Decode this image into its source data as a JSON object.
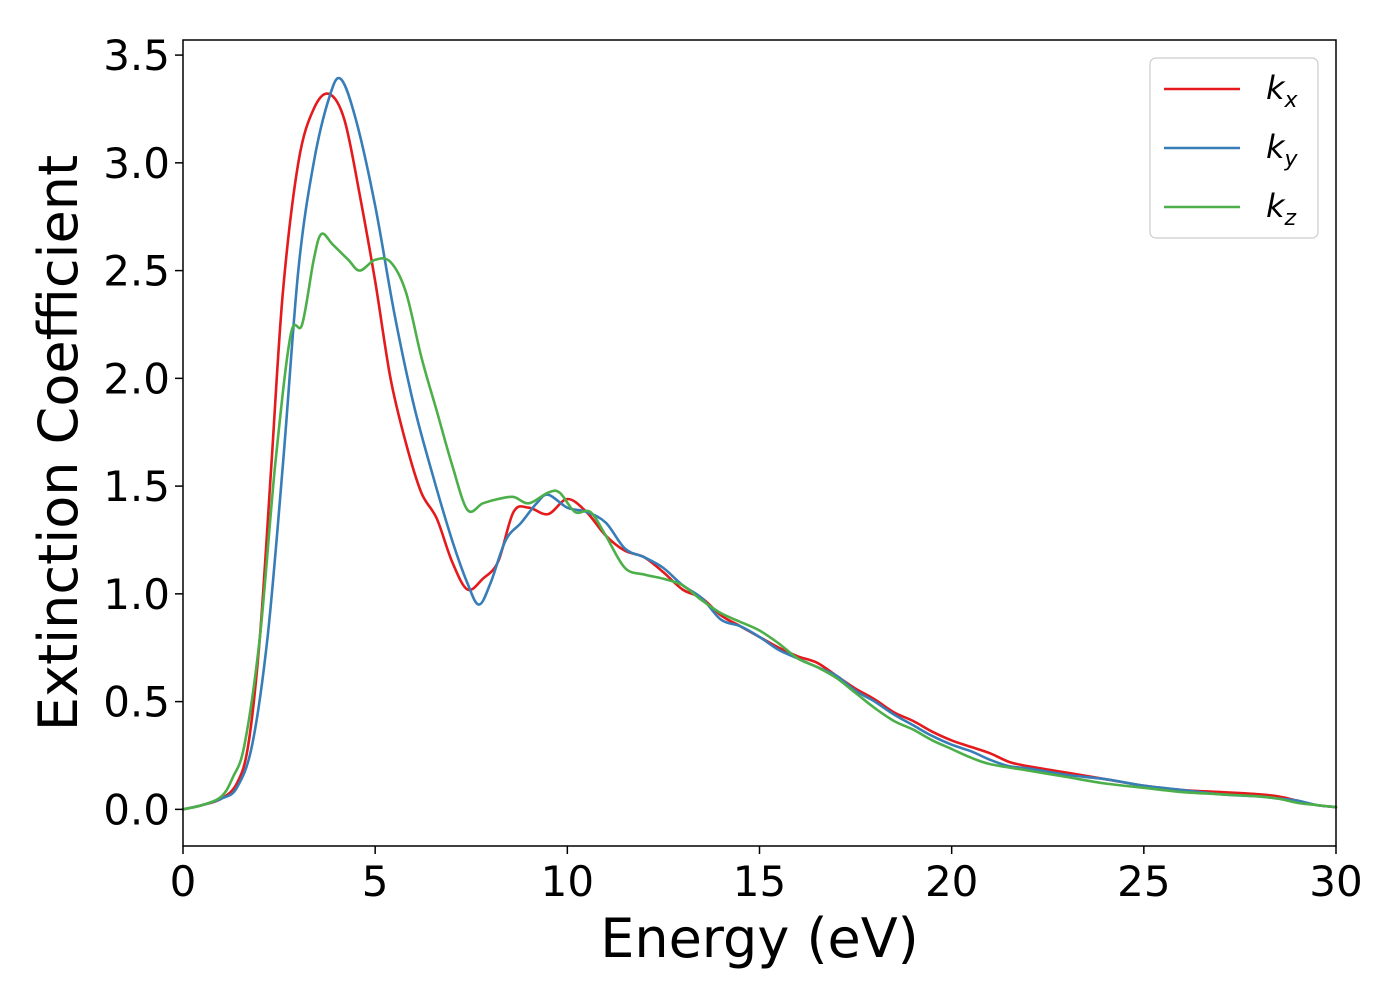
{
  "chart_data": {
    "type": "line",
    "title": "",
    "xlabel": "Energy (eV)",
    "ylabel": "Extinction Coefficient",
    "xlim": [
      0,
      30
    ],
    "ylim": [
      -0.17,
      3.57
    ],
    "xticks": [
      0,
      5,
      10,
      15,
      20,
      25,
      30
    ],
    "xtick_labels": [
      "0",
      "5",
      "10",
      "15",
      "20",
      "25",
      "30"
    ],
    "yticks": [
      0.0,
      0.5,
      1.0,
      1.5,
      2.0,
      2.5,
      3.0,
      3.5
    ],
    "ytick_labels": [
      "0.0",
      "0.5",
      "1.0",
      "1.5",
      "2.0",
      "2.5",
      "3.0",
      "3.5"
    ],
    "grid": false,
    "legend_position": "top-right",
    "series": [
      {
        "name": "k",
        "subscript": "x",
        "color": "#e41a1c",
        "points": [
          [
            0,
            0
          ],
          [
            0.5,
            0.02
          ],
          [
            1.0,
            0.05
          ],
          [
            1.4,
            0.12
          ],
          [
            1.7,
            0.3
          ],
          [
            2.0,
            0.8
          ],
          [
            2.3,
            1.6
          ],
          [
            2.6,
            2.4
          ],
          [
            3.0,
            3.0
          ],
          [
            3.4,
            3.25
          ],
          [
            3.8,
            3.32
          ],
          [
            4.2,
            3.2
          ],
          [
            4.6,
            2.85
          ],
          [
            5.0,
            2.45
          ],
          [
            5.4,
            2.0
          ],
          [
            5.8,
            1.7
          ],
          [
            6.2,
            1.47
          ],
          [
            6.6,
            1.35
          ],
          [
            7.0,
            1.15
          ],
          [
            7.4,
            1.02
          ],
          [
            7.8,
            1.07
          ],
          [
            8.2,
            1.15
          ],
          [
            8.6,
            1.38
          ],
          [
            9.0,
            1.4
          ],
          [
            9.5,
            1.37
          ],
          [
            10.0,
            1.44
          ],
          [
            10.5,
            1.38
          ],
          [
            11.0,
            1.27
          ],
          [
            11.5,
            1.2
          ],
          [
            12.0,
            1.17
          ],
          [
            12.5,
            1.1
          ],
          [
            13.0,
            1.02
          ],
          [
            13.5,
            0.98
          ],
          [
            14.0,
            0.9
          ],
          [
            14.5,
            0.85
          ],
          [
            15.0,
            0.8
          ],
          [
            15.5,
            0.75
          ],
          [
            16.0,
            0.71
          ],
          [
            16.5,
            0.68
          ],
          [
            17.0,
            0.62
          ],
          [
            17.5,
            0.56
          ],
          [
            18.0,
            0.51
          ],
          [
            18.5,
            0.45
          ],
          [
            19.0,
            0.41
          ],
          [
            19.5,
            0.36
          ],
          [
            20.0,
            0.32
          ],
          [
            20.5,
            0.29
          ],
          [
            21.0,
            0.26
          ],
          [
            21.5,
            0.22
          ],
          [
            22.0,
            0.2
          ],
          [
            23.0,
            0.17
          ],
          [
            24.0,
            0.14
          ],
          [
            25.0,
            0.11
          ],
          [
            26.0,
            0.09
          ],
          [
            27.0,
            0.08
          ],
          [
            28.0,
            0.07
          ],
          [
            28.5,
            0.06
          ],
          [
            29.0,
            0.04
          ],
          [
            29.5,
            0.02
          ],
          [
            30.0,
            0.01
          ]
        ]
      },
      {
        "name": "k",
        "subscript": "y",
        "color": "#377eb8",
        "points": [
          [
            0,
            0
          ],
          [
            0.5,
            0.02
          ],
          [
            1.0,
            0.05
          ],
          [
            1.4,
            0.1
          ],
          [
            1.8,
            0.3
          ],
          [
            2.2,
            0.8
          ],
          [
            2.6,
            1.6
          ],
          [
            3.0,
            2.5
          ],
          [
            3.4,
            3.0
          ],
          [
            3.8,
            3.3
          ],
          [
            4.1,
            3.39
          ],
          [
            4.5,
            3.2
          ],
          [
            5.0,
            2.8
          ],
          [
            5.5,
            2.3
          ],
          [
            6.0,
            1.88
          ],
          [
            6.5,
            1.55
          ],
          [
            7.0,
            1.25
          ],
          [
            7.4,
            1.05
          ],
          [
            7.7,
            0.95
          ],
          [
            8.0,
            1.05
          ],
          [
            8.4,
            1.25
          ],
          [
            8.8,
            1.33
          ],
          [
            9.2,
            1.42
          ],
          [
            9.5,
            1.46
          ],
          [
            10.0,
            1.4
          ],
          [
            10.5,
            1.38
          ],
          [
            11.0,
            1.33
          ],
          [
            11.5,
            1.21
          ],
          [
            12.0,
            1.17
          ],
          [
            12.5,
            1.12
          ],
          [
            13.0,
            1.04
          ],
          [
            13.5,
            0.98
          ],
          [
            14.0,
            0.88
          ],
          [
            14.5,
            0.85
          ],
          [
            15.0,
            0.8
          ],
          [
            15.5,
            0.74
          ],
          [
            16.0,
            0.7
          ],
          [
            16.5,
            0.66
          ],
          [
            17.0,
            0.62
          ],
          [
            17.5,
            0.55
          ],
          [
            18.0,
            0.5
          ],
          [
            18.5,
            0.44
          ],
          [
            19.0,
            0.39
          ],
          [
            19.5,
            0.34
          ],
          [
            20.0,
            0.3
          ],
          [
            20.5,
            0.27
          ],
          [
            21.0,
            0.23
          ],
          [
            21.5,
            0.2
          ],
          [
            22.0,
            0.19
          ],
          [
            23.0,
            0.16
          ],
          [
            24.0,
            0.14
          ],
          [
            25.0,
            0.11
          ],
          [
            26.0,
            0.09
          ],
          [
            27.0,
            0.07
          ],
          [
            28.0,
            0.06
          ],
          [
            28.5,
            0.05
          ],
          [
            29.0,
            0.04
          ],
          [
            29.5,
            0.02
          ],
          [
            30.0,
            0.01
          ]
        ]
      },
      {
        "name": "k",
        "subscript": "z",
        "color": "#4daf4a",
        "points": [
          [
            0,
            0
          ],
          [
            0.5,
            0.02
          ],
          [
            1.0,
            0.06
          ],
          [
            1.3,
            0.15
          ],
          [
            1.6,
            0.3
          ],
          [
            2.0,
            0.8
          ],
          [
            2.4,
            1.6
          ],
          [
            2.8,
            2.2
          ],
          [
            3.1,
            2.25
          ],
          [
            3.4,
            2.55
          ],
          [
            3.6,
            2.67
          ],
          [
            3.9,
            2.62
          ],
          [
            4.3,
            2.55
          ],
          [
            4.6,
            2.5
          ],
          [
            5.0,
            2.55
          ],
          [
            5.4,
            2.54
          ],
          [
            5.8,
            2.4
          ],
          [
            6.2,
            2.1
          ],
          [
            6.6,
            1.85
          ],
          [
            7.0,
            1.6
          ],
          [
            7.4,
            1.39
          ],
          [
            7.8,
            1.42
          ],
          [
            8.2,
            1.44
          ],
          [
            8.6,
            1.45
          ],
          [
            9.0,
            1.42
          ],
          [
            9.5,
            1.47
          ],
          [
            9.8,
            1.47
          ],
          [
            10.2,
            1.38
          ],
          [
            10.6,
            1.38
          ],
          [
            11.0,
            1.27
          ],
          [
            11.5,
            1.12
          ],
          [
            12.0,
            1.09
          ],
          [
            12.5,
            1.07
          ],
          [
            13.0,
            1.04
          ],
          [
            13.5,
            0.97
          ],
          [
            14.0,
            0.91
          ],
          [
            14.5,
            0.87
          ],
          [
            15.0,
            0.83
          ],
          [
            15.5,
            0.77
          ],
          [
            16.0,
            0.7
          ],
          [
            16.5,
            0.66
          ],
          [
            17.0,
            0.61
          ],
          [
            17.5,
            0.54
          ],
          [
            18.0,
            0.47
          ],
          [
            18.5,
            0.41
          ],
          [
            19.0,
            0.37
          ],
          [
            19.5,
            0.32
          ],
          [
            20.0,
            0.28
          ],
          [
            20.5,
            0.24
          ],
          [
            21.0,
            0.21
          ],
          [
            22.0,
            0.18
          ],
          [
            23.0,
            0.15
          ],
          [
            24.0,
            0.12
          ],
          [
            25.0,
            0.1
          ],
          [
            26.0,
            0.08
          ],
          [
            27.0,
            0.07
          ],
          [
            28.0,
            0.06
          ],
          [
            28.5,
            0.05
          ],
          [
            29.0,
            0.03
          ],
          [
            29.5,
            0.02
          ],
          [
            30.0,
            0.01
          ]
        ]
      }
    ]
  }
}
